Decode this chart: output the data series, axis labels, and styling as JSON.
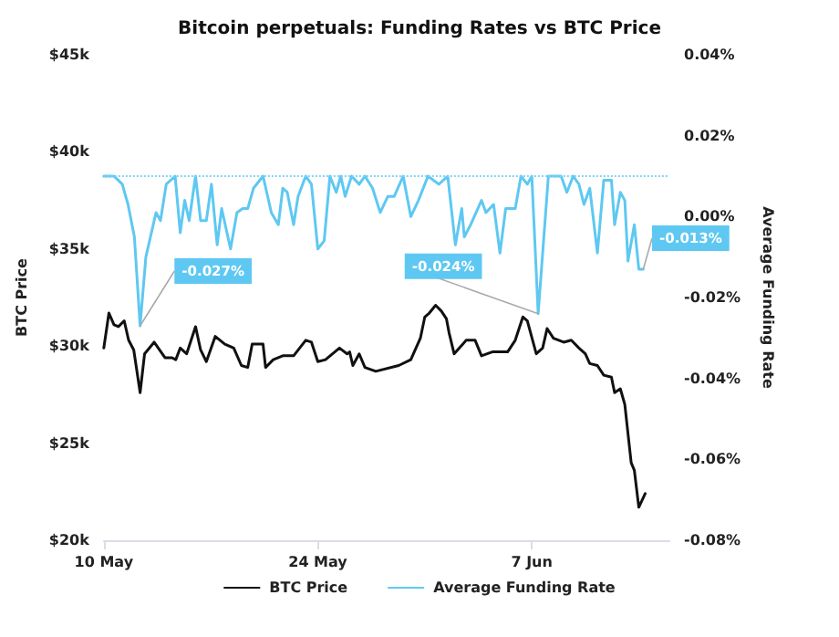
{
  "chart_data": {
    "type": "line",
    "title": "Bitcoin perpetuals: Funding Rates vs BTC Price",
    "ylabel": "BTC Price",
    "y2label": "Average Funding Rate",
    "xlim": [
      "--05-10",
      "--06-16"
    ],
    "xticks": [
      {
        "value": "--05-10",
        "label": "10 May"
      },
      {
        "value": "--05-24",
        "label": "24 May"
      },
      {
        "value": "--06-07",
        "label": "7 Jun"
      }
    ],
    "ylim": [
      20000,
      45000
    ],
    "yticks": [
      {
        "value": 20000,
        "label": "$20k"
      },
      {
        "value": 25000,
        "label": "$25k"
      },
      {
        "value": 30000,
        "label": "$30k"
      },
      {
        "value": 35000,
        "label": "$35k"
      },
      {
        "value": 40000,
        "label": "$40k"
      },
      {
        "value": 45000,
        "label": "$45k"
      }
    ],
    "y2lim": [
      -0.08,
      0.04
    ],
    "y2ticks": [
      {
        "value": -0.08,
        "label": "-0.08%"
      },
      {
        "value": -0.06,
        "label": "-0.06%"
      },
      {
        "value": -0.04,
        "label": "-0.04%"
      },
      {
        "value": -0.02,
        "label": "-0.02%"
      },
      {
        "value": 0,
        "label": "0.00%"
      },
      {
        "value": 0.02,
        "label": "0.02%"
      },
      {
        "value": 0.04,
        "label": "0.04%"
      }
    ],
    "grid": false,
    "legend": "bottom",
    "marker": "none",
    "line_style": "solid",
    "ref_lines": [
      {
        "axis": "y2",
        "value": 0.01,
        "color": "#7fd3f5",
        "line_style": "dotted"
      }
    ],
    "series": [
      {
        "name": "BTC Price",
        "color": "#111111",
        "x": [
          "--05-10T00:00",
          "--05-10T08:00",
          "--05-10T16:00",
          "--05-10T23:00",
          "--05-11T08:00",
          "--05-11T15:00",
          "--05-11T23:00",
          "--05-12T09:00",
          "--05-12T16:00",
          "--05-13T07:00",
          "--05-14T00:00",
          "--05-14T11:00",
          "--05-14T17:00",
          "--05-15T00:00",
          "--05-15T10:00",
          "--05-16T00:00",
          "--05-16T08:00",
          "--05-16T17:00",
          "--05-17T07:00",
          "--05-17T22:00",
          "--05-18T12:00",
          "--05-19T00:00",
          "--05-19T10:00",
          "--05-19T17:00",
          "--05-20T10:00",
          "--05-20T14:00",
          "--05-21T02:00",
          "--05-21T17:00",
          "--05-22T10:00",
          "--05-23T05:00",
          "--05-23T14:00",
          "--05-24T00:00",
          "--05-24T12:00",
          "--05-25T10:00",
          "--05-25T22:00",
          "--05-26T02:00",
          "--05-26T07:00",
          "--05-26T17:00",
          "--05-27T02:00",
          "--05-27T19:00",
          "--05-29T07:00",
          "--05-30T02:00",
          "--05-30T17:00",
          "--05-31T00:00",
          "--05-31T07:00",
          "--05-31T17:00",
          "--06-01T02:00",
          "--06-01T10:00",
          "--06-01T14:00",
          "--06-01T22:00",
          "--06-02T17:00",
          "--06-03T07:00",
          "--06-03T17:00",
          "--06-04T10:00",
          "--06-05T10:00",
          "--06-05T22:00",
          "--06-06T10:00",
          "--06-06T17:00",
          "--06-07T07:00",
          "--06-07T17:00",
          "--06-08T00:00",
          "--06-08T10:00",
          "--06-09T02:00",
          "--06-09T14:00",
          "--06-10T02:00",
          "--06-10T12:00",
          "--06-10T19:00",
          "--06-11T07:00",
          "--06-11T17:00",
          "--06-12T05:00",
          "--06-12T10:00",
          "--06-12T19:00",
          "--06-13T02:00",
          "--06-13T12:00",
          "--06-13T17:00",
          "--06-14T00:00",
          "--06-14T10:00"
        ],
        "values": [
          29900,
          31700,
          31100,
          31000,
          31300,
          30300,
          29800,
          27600,
          29600,
          30200,
          29400,
          29400,
          29300,
          29900,
          29600,
          31000,
          29800,
          29200,
          30500,
          30100,
          29900,
          29000,
          28900,
          30100,
          30100,
          28900,
          29300,
          29500,
          29500,
          30300,
          30200,
          29200,
          29300,
          29900,
          29600,
          29700,
          29000,
          29600,
          28900,
          28700,
          29000,
          29300,
          30400,
          31500,
          31700,
          32100,
          31800,
          31400,
          30700,
          29600,
          30300,
          30300,
          29500,
          29700,
          29700,
          30300,
          31500,
          31300,
          29600,
          29900,
          30900,
          30400,
          30200,
          30300,
          29900,
          29600,
          29100,
          29000,
          28500,
          28400,
          27600,
          27800,
          27000,
          24000,
          23600,
          21700,
          22400
        ]
      },
      {
        "name": "Average Funding Rate",
        "color": "#5ec8f2",
        "axis": "y2",
        "x": [
          "--05-10T00:00",
          "--05-10T16:00",
          "--05-11T05:00",
          "--05-11T14:00",
          "--05-12T00:00",
          "--05-12T09:00",
          "--05-12T18:00",
          "--05-13T10:00",
          "--05-13T17:00",
          "--05-14T02:00",
          "--05-14T16:00",
          "--05-15T00:00",
          "--05-15T07:00",
          "--05-15T14:00",
          "--05-16T00:00",
          "--05-16T08:00",
          "--05-16T17:00",
          "--05-17T01:00",
          "--05-17T10:00",
          "--05-17T17:00",
          "--05-18T07:00",
          "--05-18T17:00",
          "--05-19T02:00",
          "--05-19T10:00",
          "--05-19T19:00",
          "--05-20T10:00",
          "--05-20T23:00",
          "--05-21T10:00",
          "--05-21T17:00",
          "--05-22T00:00",
          "--05-22T10:00",
          "--05-22T17:00",
          "--05-23T05:00",
          "--05-23T14:00",
          "--05-24T00:00",
          "--05-24T10:00",
          "--05-24T19:00",
          "--05-25T05:00",
          "--05-25T12:00",
          "--05-25T19:00",
          "--05-26T05:00",
          "--05-26T17:00",
          "--05-27T02:00",
          "--05-27T14:00",
          "--05-28T02:00",
          "--05-28T14:00",
          "--05-29T00:00",
          "--05-29T14:00",
          "--05-30T02:00",
          "--05-30T14:00",
          "--05-31T05:00",
          "--05-31T22:00",
          "--06-01T12:00",
          "--06-02T00:00",
          "--06-02T10:00",
          "--06-02T14:00",
          "--06-03T00:00",
          "--06-03T17:00",
          "--06-04T00:00",
          "--06-04T12:00",
          "--06-04T22:00",
          "--06-05T07:00",
          "--06-05T22:00",
          "--06-06T07:00",
          "--06-06T17:00",
          "--06-07T00:00",
          "--06-07T10:00",
          "--06-08T02:00",
          "--06-08T22:00",
          "--06-09T07:00",
          "--06-09T17:00",
          "--06-10T02:00",
          "--06-10T10:00",
          "--06-10T19:00",
          "--06-11T07:00",
          "--06-11T17:00",
          "--06-12T05:00",
          "--06-12T10:00",
          "--06-12T19:00",
          "--06-13T02:00",
          "--06-13T07:00",
          "--06-13T17:00",
          "--06-14T00:00",
          "--06-14T07:00"
        ],
        "values": [
          0.01,
          0.01,
          0.008,
          0.003,
          -0.005,
          -0.027,
          -0.01,
          0.001,
          -0.001,
          0.008,
          0.01,
          -0.004,
          0.004,
          -0.001,
          0.01,
          -0.001,
          -0.001,
          0.008,
          -0.007,
          0.002,
          -0.008,
          0.001,
          0.002,
          0.002,
          0.007,
          0.01,
          0.001,
          -0.002,
          0.007,
          0.006,
          -0.002,
          0.005,
          0.01,
          0.008,
          -0.008,
          -0.006,
          0.01,
          0.006,
          0.01,
          0.005,
          0.01,
          0.008,
          0.01,
          0.007,
          0.001,
          0.005,
          0.005,
          0.01,
          0,
          0.004,
          0.01,
          0.008,
          0.01,
          -0.007,
          0.002,
          -0.005,
          -0.002,
          0.004,
          0.001,
          0.003,
          -0.009,
          0.002,
          0.002,
          0.01,
          0.008,
          0.01,
          -0.024,
          0.01,
          0.01,
          0.006,
          0.01,
          0.008,
          0.003,
          0.007,
          -0.009,
          0.009,
          0.009,
          -0.002,
          0.006,
          0.004,
          -0.011,
          -0.002,
          -0.013,
          -0.013
        ],
        "value_labels": [
          null,
          null,
          null,
          null,
          null,
          "-0.027%",
          null,
          null,
          null,
          null,
          null,
          null,
          null,
          null,
          null,
          null,
          null,
          null,
          null,
          null,
          null,
          null,
          null,
          null,
          null,
          null,
          null,
          null,
          null,
          null,
          null,
          null,
          null,
          null,
          null,
          null,
          null,
          null,
          null,
          null,
          null,
          null,
          null,
          null,
          null,
          null,
          null,
          null,
          null,
          null,
          null,
          null,
          null,
          null,
          null,
          null,
          null,
          null,
          null,
          null,
          null,
          null,
          null,
          null,
          null,
          null,
          "-0.024%",
          null,
          null,
          null,
          null,
          null,
          null,
          null,
          null,
          null,
          null,
          null,
          null,
          null,
          null,
          null,
          null,
          "-0.013%"
        ]
      }
    ]
  }
}
